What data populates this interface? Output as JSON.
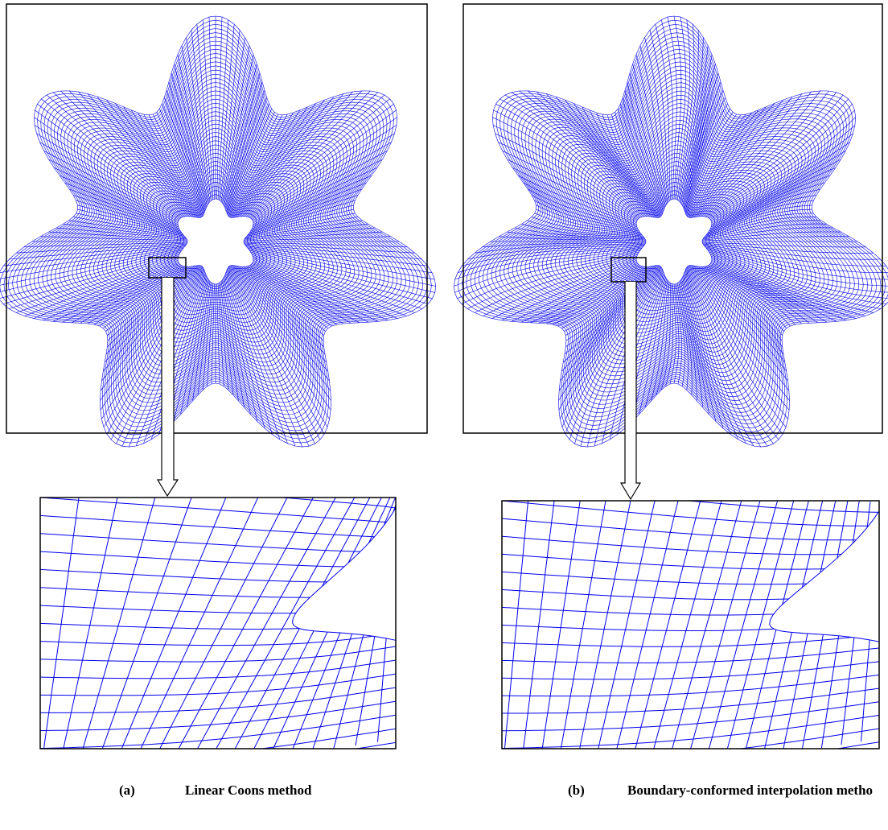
{
  "captions": [
    {
      "label": "(a)",
      "text": "Linear Coons method"
    },
    {
      "label": "(b)",
      "text": "Boundary-conformed interpolation metho"
    }
  ]
}
